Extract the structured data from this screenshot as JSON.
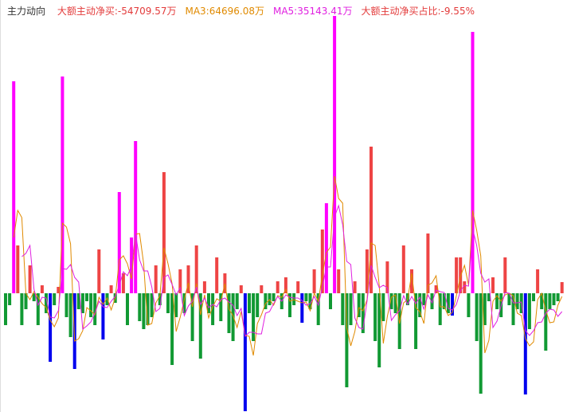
{
  "chart_data": {
    "type": "bar",
    "title": "主力动向",
    "title_color": "#333333",
    "header_items": [
      {
        "text": "大额主动净买:-54709.57万",
        "color": "#e33b3b"
      },
      {
        "text": "MA3:64696.08万",
        "color": "#e08a00"
      },
      {
        "text": "MA5:35143.41万",
        "color": "#e020e0"
      },
      {
        "text": "大额主动净买占比:-9.55%",
        "color": "#e33b3b"
      }
    ],
    "ylim": [
      -149,
      348
    ],
    "values": [
      -40,
      -15,
      266,
      60,
      -40,
      -20,
      35,
      -10,
      -40,
      10,
      -25,
      -86,
      -15,
      8,
      272,
      -30,
      -55,
      -95,
      -20,
      -25,
      -10,
      -30,
      -40,
      55,
      -58,
      -15,
      10,
      -12,
      127,
      25,
      -40,
      70,
      191,
      -35,
      -45,
      -40,
      -30,
      35,
      -15,
      152,
      -25,
      -90,
      -30,
      30,
      -25,
      35,
      -60,
      60,
      -82,
      15,
      -25,
      -40,
      45,
      -35,
      25,
      -50,
      -60,
      -20,
      10,
      -148,
      -25,
      -60,
      -30,
      10,
      -20,
      -15,
      -10,
      15,
      -20,
      20,
      -30,
      -15,
      15,
      -37,
      -10,
      -20,
      30,
      -40,
      80,
      113,
      -20,
      348,
      30,
      -40,
      -118,
      -40,
      15,
      -30,
      -50,
      55,
      184,
      -60,
      -93,
      -35,
      40,
      -20,
      -25,
      -70,
      60,
      -15,
      30,
      -70,
      -30,
      -15,
      75,
      -20,
      10,
      -40,
      -20,
      -25,
      -28,
      45,
      45,
      15,
      -30,
      328,
      -60,
      -126,
      -40,
      -10,
      20,
      -20,
      -30,
      45,
      -15,
      -40,
      -20,
      -25,
      -127,
      -45,
      -10,
      30,
      -20,
      -72,
      -20,
      -15,
      -10,
      14
    ],
    "colors": [
      "#193",
      "#193",
      "#f0f",
      "#e44",
      "#193",
      "#193",
      "#e44",
      "#193",
      "#193",
      "#e44",
      "#193",
      "#00e",
      "#193",
      "#e44",
      "#f0f",
      "#193",
      "#193",
      "#00e",
      "#193",
      "#193",
      "#193",
      "#193",
      "#193",
      "#e44",
      "#00e",
      "#193",
      "#e44",
      "#193",
      "#f0f",
      "#e44",
      "#193",
      "#f0f",
      "#f0f",
      "#193",
      "#193",
      "#193",
      "#193",
      "#e44",
      "#193",
      "#e44",
      "#193",
      "#193",
      "#193",
      "#e44",
      "#193",
      "#e44",
      "#193",
      "#e44",
      "#193",
      "#e44",
      "#193",
      "#193",
      "#e44",
      "#193",
      "#e44",
      "#193",
      "#193",
      "#193",
      "#e44",
      "#00e",
      "#193",
      "#193",
      "#193",
      "#e44",
      "#193",
      "#193",
      "#193",
      "#e44",
      "#193",
      "#e44",
      "#193",
      "#193",
      "#e44",
      "#00e",
      "#193",
      "#193",
      "#e44",
      "#193",
      "#e44",
      "#f0f",
      "#193",
      "#f0f",
      "#e44",
      "#193",
      "#193",
      "#193",
      "#e44",
      "#193",
      "#193",
      "#e44",
      "#e44",
      "#193",
      "#193",
      "#193",
      "#e44",
      "#193",
      "#193",
      "#193",
      "#e44",
      "#193",
      "#e44",
      "#193",
      "#193",
      "#193",
      "#e44",
      "#193",
      "#e44",
      "#193",
      "#193",
      "#193",
      "#00e",
      "#e44",
      "#e44",
      "#e44",
      "#193",
      "#f0f",
      "#193",
      "#193",
      "#193",
      "#193",
      "#e44",
      "#193",
      "#193",
      "#e44",
      "#193",
      "#193",
      "#193",
      "#193",
      "#00e",
      "#193",
      "#193",
      "#e44",
      "#193",
      "#193",
      "#193",
      "#193",
      "#193",
      "#e44"
    ],
    "series": [
      {
        "type": "line",
        "color": "#e08a00",
        "values": [
          null,
          null,
          70,
          104,
          95,
          0,
          -8,
          2,
          -5,
          -13,
          -18,
          -34,
          -42,
          -31,
          88,
          83,
          62,
          -60,
          -57,
          -47,
          -18,
          -22,
          -27,
          -5,
          -14,
          -6,
          -21,
          -6,
          42,
          47,
          37,
          18,
          74,
          75,
          37,
          -40,
          -38,
          -12,
          -3,
          57,
          37,
          12,
          -48,
          -30,
          -8,
          13,
          -17,
          12,
          -27,
          -2,
          -31,
          -17,
          -7,
          -10,
          12,
          -20,
          -28,
          -43,
          -23,
          -53,
          -54,
          -78,
          -38,
          -27,
          -13,
          -8,
          -15,
          -3,
          -5,
          5,
          -10,
          -8,
          -10,
          -12,
          -11,
          -22,
          0,
          -10,
          23,
          51,
          58,
          147,
          119,
          113,
          -43,
          -66,
          -48,
          -18,
          -22,
          -8,
          63,
          60,
          10,
          -63,
          -29,
          -5,
          -2,
          -38,
          -12,
          -8,
          25,
          -18,
          -23,
          -38,
          10,
          13,
          22,
          -17,
          -17,
          -28,
          -24,
          -3,
          21,
          35,
          10,
          104,
          79,
          47,
          -75,
          -59,
          -10,
          -3,
          -10,
          -2,
          0,
          -3,
          -25,
          -28,
          -57,
          -66,
          -61,
          -8,
          0,
          -21,
          -37,
          -36,
          -15,
          -4
        ]
      },
      {
        "type": "line",
        "color": "#e020e0",
        "values": [
          null,
          null,
          null,
          null,
          46,
          50,
          60,
          5,
          -15,
          -5,
          -6,
          -30,
          -31,
          -22,
          31,
          30,
          36,
          20,
          14,
          -45,
          -41,
          -36,
          -25,
          -10,
          -17,
          -18,
          -10,
          -4,
          10,
          27,
          22,
          34,
          75,
          42,
          28,
          28,
          8,
          -23,
          -19,
          20,
          23,
          11,
          -2,
          7,
          -28,
          -16,
          -10,
          8,
          -14,
          -6,
          -18,
          -14,
          -17,
          -8,
          -6,
          -11,
          -15,
          -28,
          -19,
          -54,
          -49,
          -49,
          -51,
          -51,
          -25,
          -23,
          -13,
          -4,
          -10,
          -2,
          -5,
          -6,
          -6,
          -9,
          -15,
          -13,
          -4,
          -15,
          8,
          33,
          33,
          96,
          110,
          86,
          40,
          36,
          -31,
          -43,
          -45,
          -10,
          35,
          20,
          7,
          10,
          7,
          -34,
          -27,
          -22,
          -3,
          -14,
          -4,
          -13,
          -5,
          -20,
          -2,
          -12,
          4,
          2,
          1,
          -19,
          -21,
          -14,
          3,
          10,
          9,
          81,
          60,
          25,
          14,
          18,
          -43,
          -35,
          -16,
          1,
          0,
          -12,
          -12,
          -11,
          -47,
          -53,
          -47,
          -37,
          -36,
          -25,
          -20,
          -21,
          -29,
          -23
        ]
      }
    ]
  }
}
